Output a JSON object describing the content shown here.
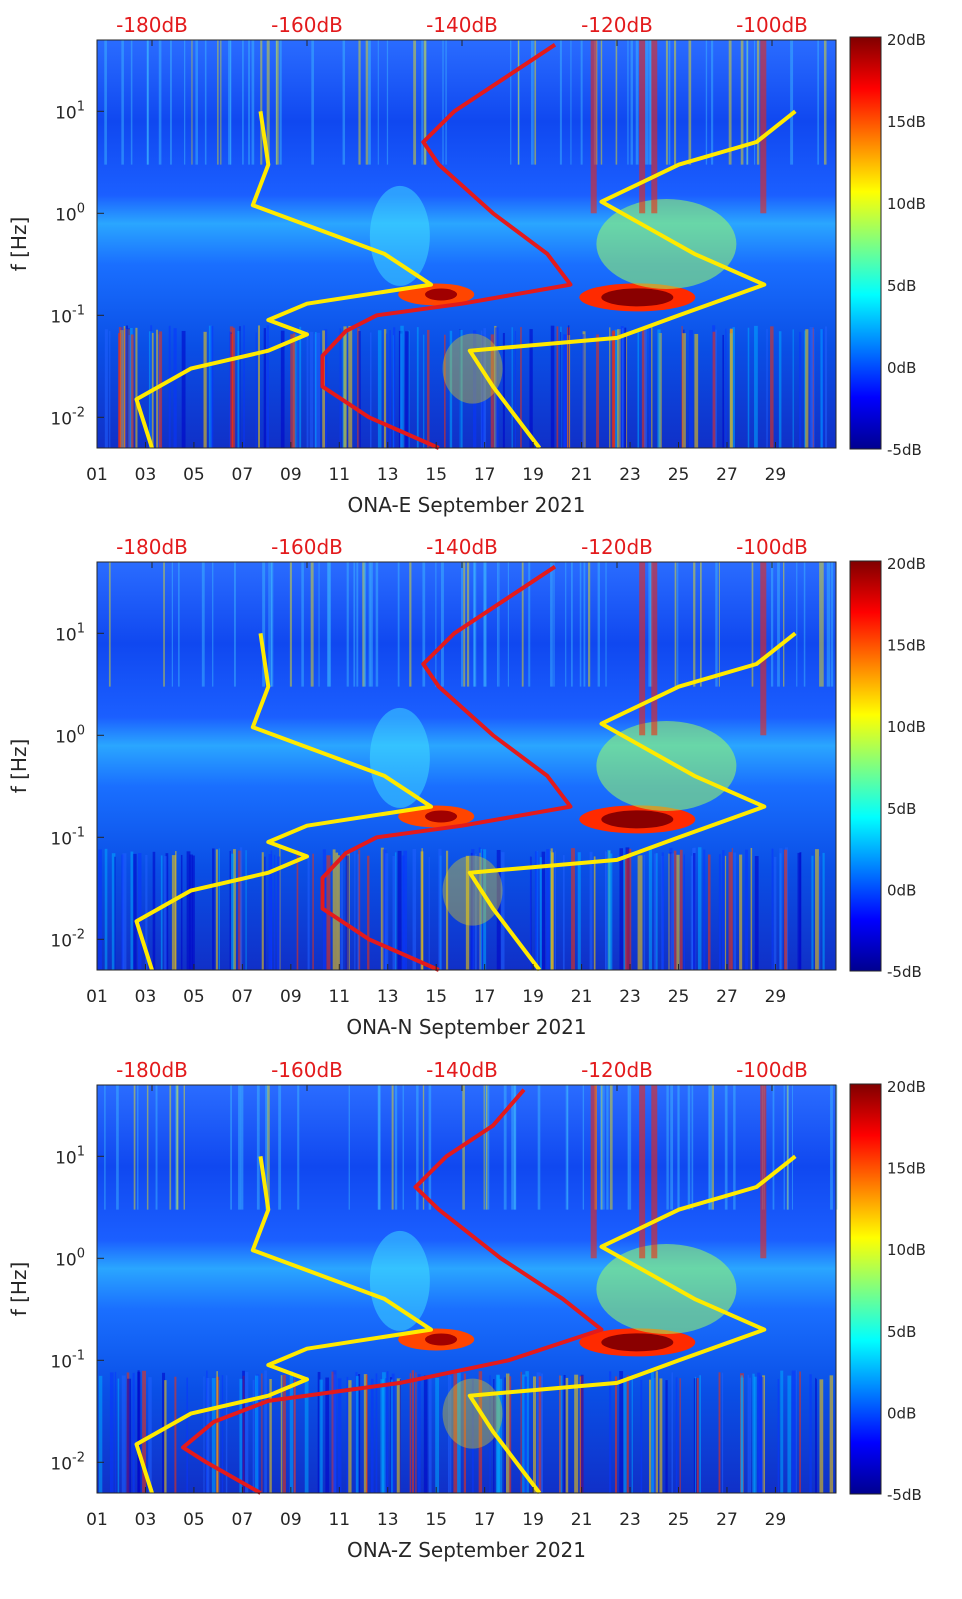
{
  "chart_data": [
    {
      "type": "heatmap",
      "xlabel": "ONA-E September 2021",
      "ylabel": "f [Hz]",
      "x_ticks": [
        "01",
        "03",
        "05",
        "07",
        "09",
        "11",
        "13",
        "15",
        "17",
        "19",
        "21",
        "23",
        "25",
        "27",
        "29"
      ],
      "y_ticks": [
        "10^-2",
        "10^-1",
        "10^0",
        "10^1"
      ],
      "top_ticks": [
        "-180dB",
        "-160dB",
        "-140dB",
        "-120dB",
        "-100dB"
      ],
      "colorbar_ticks": [
        "20dB",
        "15dB",
        "10dB",
        "5dB",
        "0dB",
        "-5dB"
      ],
      "clim": [
        -5,
        20
      ],
      "colormap": "jet",
      "y_scale": "log",
      "ylim": [
        0.005,
        50
      ],
      "xlim": [
        1,
        31.5
      ],
      "bright_days": [
        23.5,
        24,
        21.5,
        28.5
      ],
      "series": [
        {
          "color": "#e31a1c",
          "x_axis": "top dB",
          "points": [
            [
              -143,
              0.005
            ],
            [
              -152,
              0.01
            ],
            [
              -158,
              0.02
            ],
            [
              -158,
              0.04
            ],
            [
              -155,
              0.07
            ],
            [
              -151,
              0.1
            ],
            [
              -140,
              0.13
            ],
            [
              -126,
              0.2
            ],
            [
              -129,
              0.4
            ],
            [
              -136,
              1
            ],
            [
              -143,
              3
            ],
            [
              -145,
              5
            ],
            [
              -141,
              10
            ],
            [
              -135,
              20
            ],
            [
              -128,
              45
            ]
          ]
        },
        {
          "color": "#ffea00",
          "x_axis": "top dB",
          "points": [
            [
              -180,
              0.005
            ],
            [
              -182,
              0.015
            ],
            [
              -175,
              0.03
            ],
            [
              -165,
              0.045
            ],
            [
              -160,
              0.065
            ],
            [
              -165,
              0.09
            ],
            [
              -160,
              0.13
            ],
            [
              -144,
              0.2
            ],
            [
              -150,
              0.4
            ],
            [
              -167,
              1.2
            ],
            [
              -165,
              3
            ],
            [
              -166,
              10
            ]
          ]
        },
        {
          "color": "#ffea00",
          "x_axis": "top dB",
          "points": [
            [
              -130,
              0.005
            ],
            [
              -136,
              0.02
            ],
            [
              -139,
              0.045
            ],
            [
              -120,
              0.06
            ],
            [
              -112,
              0.1
            ],
            [
              -101,
              0.2
            ],
            [
              -110,
              0.4
            ],
            [
              -122,
              1.3
            ],
            [
              -112,
              3
            ],
            [
              -102,
              5
            ],
            [
              -97,
              10
            ]
          ]
        }
      ]
    },
    {
      "type": "heatmap",
      "xlabel": "ONA-N September 2021",
      "ylabel": "f [Hz]",
      "x_ticks": [
        "01",
        "03",
        "05",
        "07",
        "09",
        "11",
        "13",
        "15",
        "17",
        "19",
        "21",
        "23",
        "25",
        "27",
        "29"
      ],
      "y_ticks": [
        "10^-2",
        "10^-1",
        "10^0",
        "10^1"
      ],
      "top_ticks": [
        "-180dB",
        "-160dB",
        "-140dB",
        "-120dB",
        "-100dB"
      ],
      "colorbar_ticks": [
        "20dB",
        "15dB",
        "10dB",
        "5dB",
        "0dB",
        "-5dB"
      ],
      "clim": [
        -5,
        20
      ],
      "colormap": "jet",
      "y_scale": "log",
      "ylim": [
        0.005,
        50
      ],
      "xlim": [
        1,
        31.5
      ],
      "bright_days": [
        23.5,
        24,
        28.5
      ],
      "series": [
        {
          "color": "#e31a1c",
          "x_axis": "top dB",
          "points": [
            [
              -143,
              0.005
            ],
            [
              -152,
              0.01
            ],
            [
              -158,
              0.02
            ],
            [
              -158,
              0.04
            ],
            [
              -155,
              0.07
            ],
            [
              -151,
              0.1
            ],
            [
              -140,
              0.13
            ],
            [
              -126,
              0.2
            ],
            [
              -129,
              0.4
            ],
            [
              -136,
              1
            ],
            [
              -143,
              3
            ],
            [
              -145,
              5
            ],
            [
              -141,
              10
            ],
            [
              -135,
              20
            ],
            [
              -128,
              45
            ]
          ]
        },
        {
          "color": "#ffea00",
          "x_axis": "top dB",
          "points": [
            [
              -180,
              0.005
            ],
            [
              -182,
              0.015
            ],
            [
              -175,
              0.03
            ],
            [
              -165,
              0.045
            ],
            [
              -160,
              0.065
            ],
            [
              -165,
              0.09
            ],
            [
              -160,
              0.13
            ],
            [
              -144,
              0.2
            ],
            [
              -150,
              0.4
            ],
            [
              -167,
              1.2
            ],
            [
              -165,
              3
            ],
            [
              -166,
              10
            ]
          ]
        },
        {
          "color": "#ffea00",
          "x_axis": "top dB",
          "points": [
            [
              -130,
              0.005
            ],
            [
              -136,
              0.02
            ],
            [
              -139,
              0.045
            ],
            [
              -120,
              0.06
            ],
            [
              -112,
              0.1
            ],
            [
              -101,
              0.2
            ],
            [
              -110,
              0.4
            ],
            [
              -122,
              1.3
            ],
            [
              -112,
              3
            ],
            [
              -102,
              5
            ],
            [
              -97,
              10
            ]
          ]
        }
      ]
    },
    {
      "type": "heatmap",
      "xlabel": "ONA-Z September 2021",
      "ylabel": "f [Hz]",
      "x_ticks": [
        "01",
        "03",
        "05",
        "07",
        "09",
        "11",
        "13",
        "15",
        "17",
        "19",
        "21",
        "23",
        "25",
        "27",
        "29"
      ],
      "y_ticks": [
        "10^-2",
        "10^-1",
        "10^0",
        "10^1"
      ],
      "top_ticks": [
        "-180dB",
        "-160dB",
        "-140dB",
        "-120dB",
        "-100dB"
      ],
      "colorbar_ticks": [
        "20dB",
        "15dB",
        "10dB",
        "5dB",
        "0dB",
        "-5dB"
      ],
      "clim": [
        -5,
        20
      ],
      "colormap": "jet",
      "y_scale": "log",
      "ylim": [
        0.005,
        50
      ],
      "xlim": [
        1,
        31.5
      ],
      "bright_days": [
        23.5,
        24,
        21.5,
        28.5
      ],
      "series": [
        {
          "color": "#e31a1c",
          "x_axis": "top dB",
          "points": [
            [
              -166,
              0.005
            ],
            [
              -173,
              0.01
            ],
            [
              -176,
              0.014
            ],
            [
              -172,
              0.025
            ],
            [
              -165,
              0.04
            ],
            [
              -148,
              0.06
            ],
            [
              -134,
              0.1
            ],
            [
              -122,
              0.2
            ],
            [
              -127,
              0.4
            ],
            [
              -135,
              1
            ],
            [
              -143,
              3
            ],
            [
              -146,
              5
            ],
            [
              -142,
              10
            ],
            [
              -136,
              20
            ],
            [
              -132,
              45
            ]
          ]
        },
        {
          "color": "#ffea00",
          "x_axis": "top dB",
          "points": [
            [
              -180,
              0.005
            ],
            [
              -182,
              0.015
            ],
            [
              -175,
              0.03
            ],
            [
              -165,
              0.045
            ],
            [
              -160,
              0.065
            ],
            [
              -165,
              0.09
            ],
            [
              -160,
              0.13
            ],
            [
              -144,
              0.2
            ],
            [
              -150,
              0.4
            ],
            [
              -167,
              1.2
            ],
            [
              -165,
              3
            ],
            [
              -166,
              10
            ]
          ]
        },
        {
          "color": "#ffea00",
          "x_axis": "top dB",
          "points": [
            [
              -130,
              0.005
            ],
            [
              -136,
              0.02
            ],
            [
              -139,
              0.045
            ],
            [
              -120,
              0.06
            ],
            [
              -112,
              0.1
            ],
            [
              -101,
              0.2
            ],
            [
              -110,
              0.4
            ],
            [
              -122,
              1.3
            ],
            [
              -112,
              3
            ],
            [
              -102,
              5
            ],
            [
              -97,
              10
            ]
          ]
        }
      ]
    }
  ]
}
